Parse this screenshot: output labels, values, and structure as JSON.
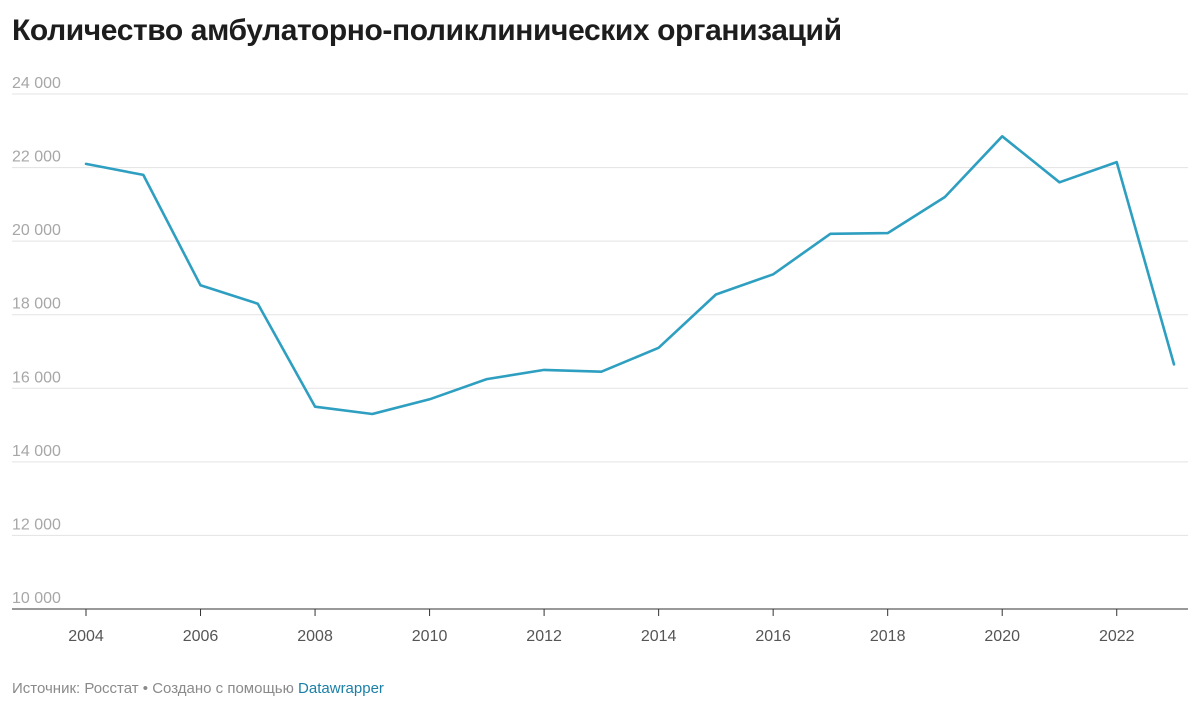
{
  "chart_data": {
    "type": "line",
    "title": "Количество амбулаторно-поликлинических организаций",
    "x": [
      2004,
      2005,
      2006,
      2007,
      2008,
      2009,
      2010,
      2011,
      2012,
      2013,
      2014,
      2015,
      2016,
      2017,
      2018,
      2019,
      2020,
      2021,
      2022,
      2023
    ],
    "series": [
      {
        "values": [
          22100,
          21800,
          18800,
          18300,
          15500,
          15300,
          15700,
          16250,
          16500,
          16450,
          17100,
          18550,
          19100,
          20200,
          20220,
          21200,
          22850,
          21600,
          22150,
          16650
        ],
        "color": "#2e9fc0"
      }
    ],
    "ylim": [
      10000,
      24000
    ],
    "yticks": [
      10000,
      12000,
      14000,
      16000,
      18000,
      20000,
      22000,
      24000
    ],
    "ytick_labels": [
      "10 000",
      "12 000",
      "14 000",
      "16 000",
      "18 000",
      "20 000",
      "22 000",
      "24 000"
    ],
    "xticks": [
      2004,
      2006,
      2008,
      2010,
      2012,
      2014,
      2016,
      2018,
      2020,
      2022
    ],
    "xtick_labels": [
      "2004",
      "2006",
      "2008",
      "2010",
      "2012",
      "2014",
      "2016",
      "2018",
      "2020",
      "2022"
    ],
    "xlabel": "",
    "ylabel": "",
    "grid": true
  },
  "footer": {
    "source": "Источник: Росстат • Создано с помощью ",
    "link": "Datawrapper"
  }
}
